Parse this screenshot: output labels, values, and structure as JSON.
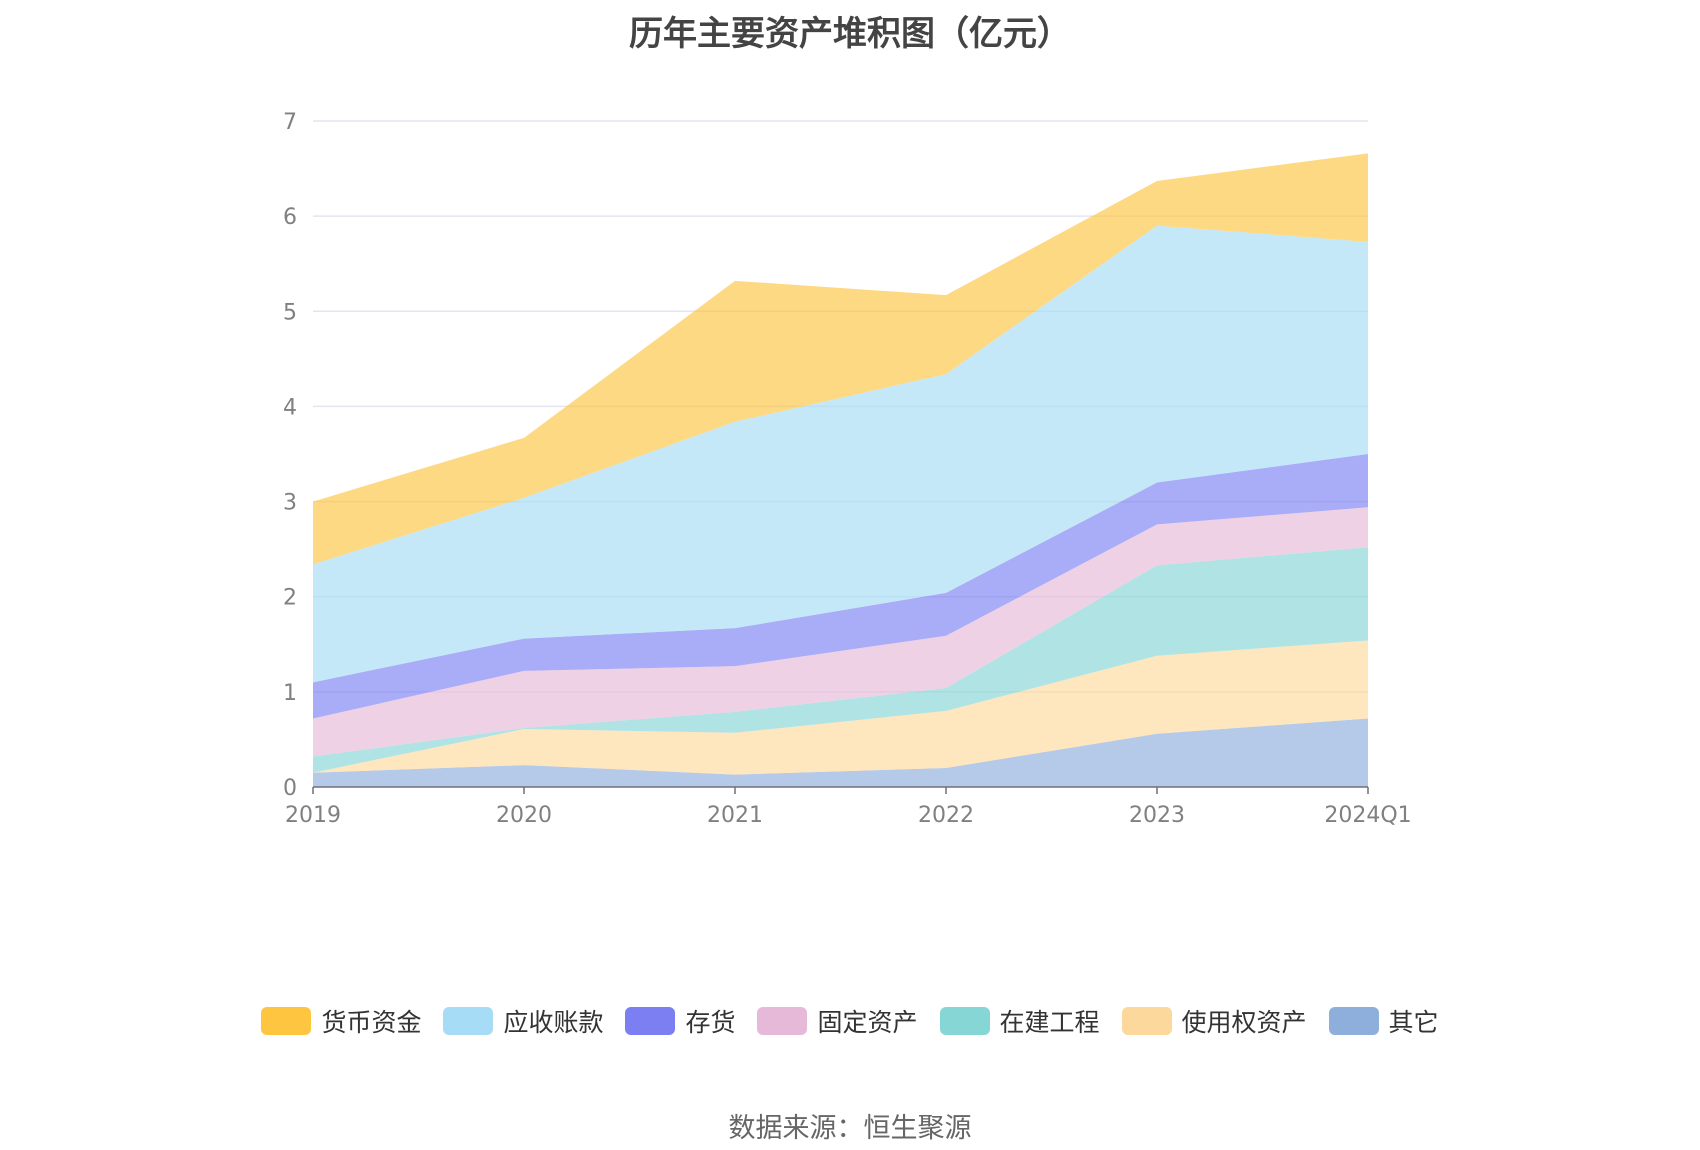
{
  "chart_data": {
    "type": "area",
    "stacked": true,
    "title": "历年主要资产堆积图（亿元）",
    "categories": [
      "2019",
      "2020",
      "2021",
      "2022",
      "2023",
      "2024Q1"
    ],
    "ylim": [
      0,
      7
    ],
    "yticks": [
      "0",
      "1",
      "2",
      "3",
      "4",
      "5",
      "6",
      "7"
    ],
    "grid": true,
    "legend_position": "bottom",
    "series": [
      {
        "name": "其它",
        "color": "#8eaedb",
        "values": [
          0.15,
          0.23,
          0.13,
          0.2,
          0.56,
          0.72
        ]
      },
      {
        "name": "使用权资产",
        "color": "#fdd89c",
        "values": [
          0.0,
          0.38,
          0.44,
          0.6,
          0.82,
          0.82
        ]
      },
      {
        "name": "在建工程",
        "color": "#86d6d6",
        "values": [
          0.17,
          0.01,
          0.22,
          0.24,
          0.95,
          0.98
        ]
      },
      {
        "name": "固定资产",
        "color": "#e7b9d8",
        "values": [
          0.4,
          0.6,
          0.48,
          0.55,
          0.43,
          0.42
        ]
      },
      {
        "name": "存货",
        "color": "#7b7ff2",
        "values": [
          0.38,
          0.34,
          0.4,
          0.45,
          0.44,
          0.56
        ]
      },
      {
        "name": "应收账款",
        "color": "#a6dcf6",
        "values": [
          1.24,
          1.48,
          2.17,
          2.3,
          2.7,
          2.23
        ]
      },
      {
        "name": "货币资金",
        "color": "#fdc540",
        "values": [
          0.66,
          0.63,
          1.48,
          0.83,
          0.47,
          0.93
        ]
      }
    ]
  },
  "legend_order": [
    "货币资金",
    "应收账款",
    "存货",
    "固定资产",
    "在建工程",
    "使用权资产",
    "其它"
  ],
  "source": "数据来源：恒生聚源"
}
